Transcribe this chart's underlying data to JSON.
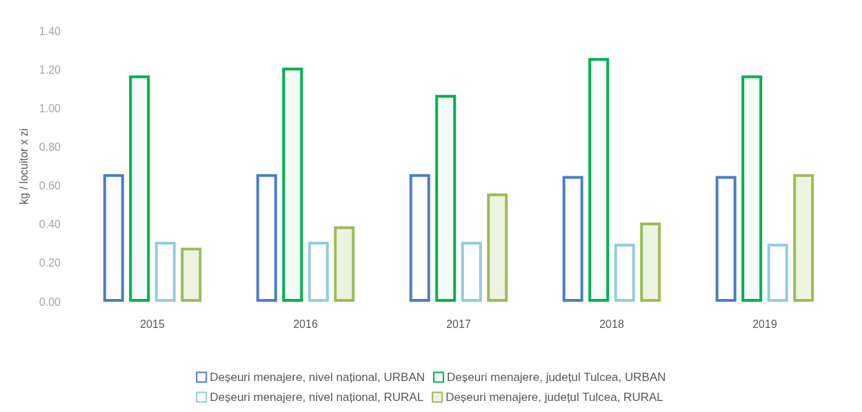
{
  "chart_data": {
    "type": "bar",
    "ylabel": "kg / locuitor x zi",
    "categories": [
      "2015",
      "2016",
      "2017",
      "2018",
      "2019"
    ],
    "series": [
      {
        "name": "Deșeuri menajere, nivel național, URBAN",
        "color": "#4a7ec4",
        "values": [
          0.66,
          0.66,
          0.66,
          0.65,
          0.65
        ]
      },
      {
        "name": "Deșeuri menajere, județul Tulcea, URBAN",
        "color": "#00b050",
        "values": [
          1.17,
          1.21,
          1.07,
          1.26,
          1.17
        ]
      },
      {
        "name": "Deșeuri menajere, nivel național, RURAL",
        "color": "#92cddc",
        "values": [
          0.31,
          0.31,
          0.31,
          0.3,
          0.3
        ]
      },
      {
        "name": "Deșeuri menajere, județul Tulcea, RURAL",
        "color": "#9bbb59",
        "values": [
          0.28,
          0.39,
          0.56,
          0.41,
          0.66
        ]
      }
    ],
    "ylim": [
      0,
      1.4
    ],
    "yticks": [
      {
        "value": 0,
        "label": "0.00"
      },
      {
        "value": 0.2,
        "label": "0.20"
      },
      {
        "value": 0.4,
        "label": "0.40"
      },
      {
        "value": 0.6,
        "label": "0.60"
      },
      {
        "value": 0.8,
        "label": "0.80"
      },
      {
        "value": 1,
        "label": "1.00"
      },
      {
        "value": 1.2,
        "label": "1.20"
      },
      {
        "value": 1.4,
        "label": "1.40"
      }
    ],
    "grid": false,
    "legend": "bottom"
  }
}
